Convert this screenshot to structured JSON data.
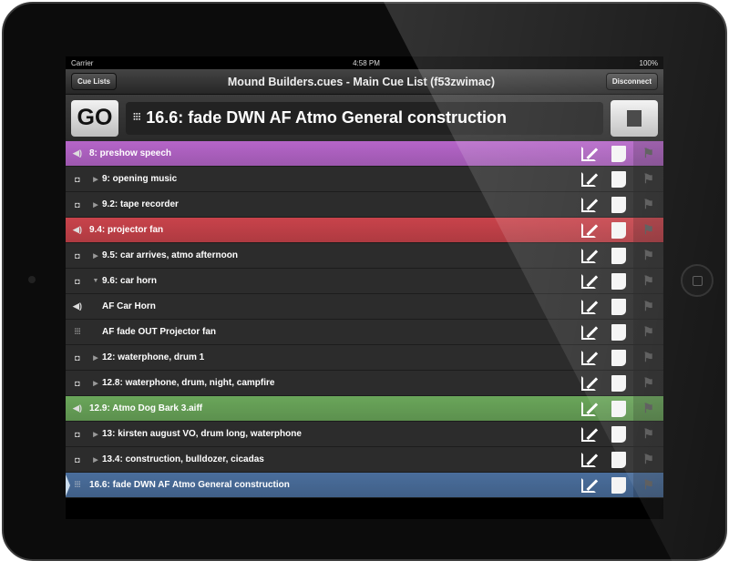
{
  "status": {
    "carrier": "Carrier",
    "time": "4:58 PM",
    "battery": "100%"
  },
  "nav": {
    "left": "Cue Lists",
    "title": "Mound Builders.cues - Main Cue List (f53zwimac)",
    "right": "Disconnect"
  },
  "go": {
    "label": "GO",
    "standby": "16.6: fade DWN AF Atmo General construction",
    "standby_icon": "fader-icon"
  },
  "rows": [
    {
      "label": "8: preshow speech",
      "icon": "speaker",
      "color": "#b565c9",
      "expand": ""
    },
    {
      "label": "9: opening music",
      "icon": "group",
      "color": "",
      "expand": "▶"
    },
    {
      "label": "9.2: tape recorder",
      "icon": "group",
      "color": "",
      "expand": "▶"
    },
    {
      "label": "9.4: projector fan",
      "icon": "speaker",
      "color": "#c9434b",
      "expand": ""
    },
    {
      "label": "9.5: car arrives, atmo afternoon",
      "icon": "group",
      "color": "",
      "expand": "▶"
    },
    {
      "label": "9.6: car horn",
      "icon": "group",
      "color": "",
      "expand": "▼"
    },
    {
      "label": "AF Car Horn",
      "icon": "speaker",
      "color": "",
      "expand": " "
    },
    {
      "label": "AF fade OUT Projector fan",
      "icon": "fader",
      "color": "",
      "expand": " "
    },
    {
      "label": "12: waterphone, drum 1",
      "icon": "group",
      "color": "",
      "expand": "▶"
    },
    {
      "label": "12.8: waterphone, drum, night, campfire",
      "icon": "group",
      "color": "",
      "expand": "▶"
    },
    {
      "label": "12.9: Atmo Dog Bark 3.aiff",
      "icon": "speaker",
      "color": "#6aa65a",
      "expand": ""
    },
    {
      "label": "13: kirsten august VO, drum long, waterphone",
      "icon": "group",
      "color": "",
      "expand": "▶"
    },
    {
      "label": "13.4: construction, bulldozer, cicadas",
      "icon": "group",
      "color": "",
      "expand": "▶"
    },
    {
      "label": "16.6: fade DWN AF Atmo General construction",
      "icon": "fader",
      "color": "#4a6e9c",
      "expand": "",
      "selected": true
    }
  ]
}
